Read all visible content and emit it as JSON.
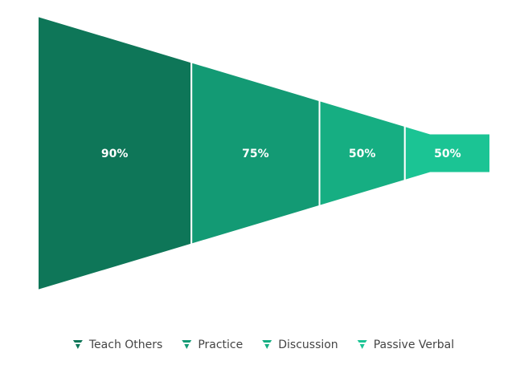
{
  "chart_data": {
    "type": "funnel",
    "categories": [
      "Teach Others",
      "Practice",
      "Discussion",
      "Passive Verbal"
    ],
    "values": [
      90,
      75,
      50,
      50
    ],
    "value_labels": [
      "90%",
      "75%",
      "50%",
      "50%"
    ],
    "colors": [
      "#0e7658",
      "#139a74",
      "#16ae82",
      "#1bc494"
    ],
    "legend": "bottom"
  }
}
